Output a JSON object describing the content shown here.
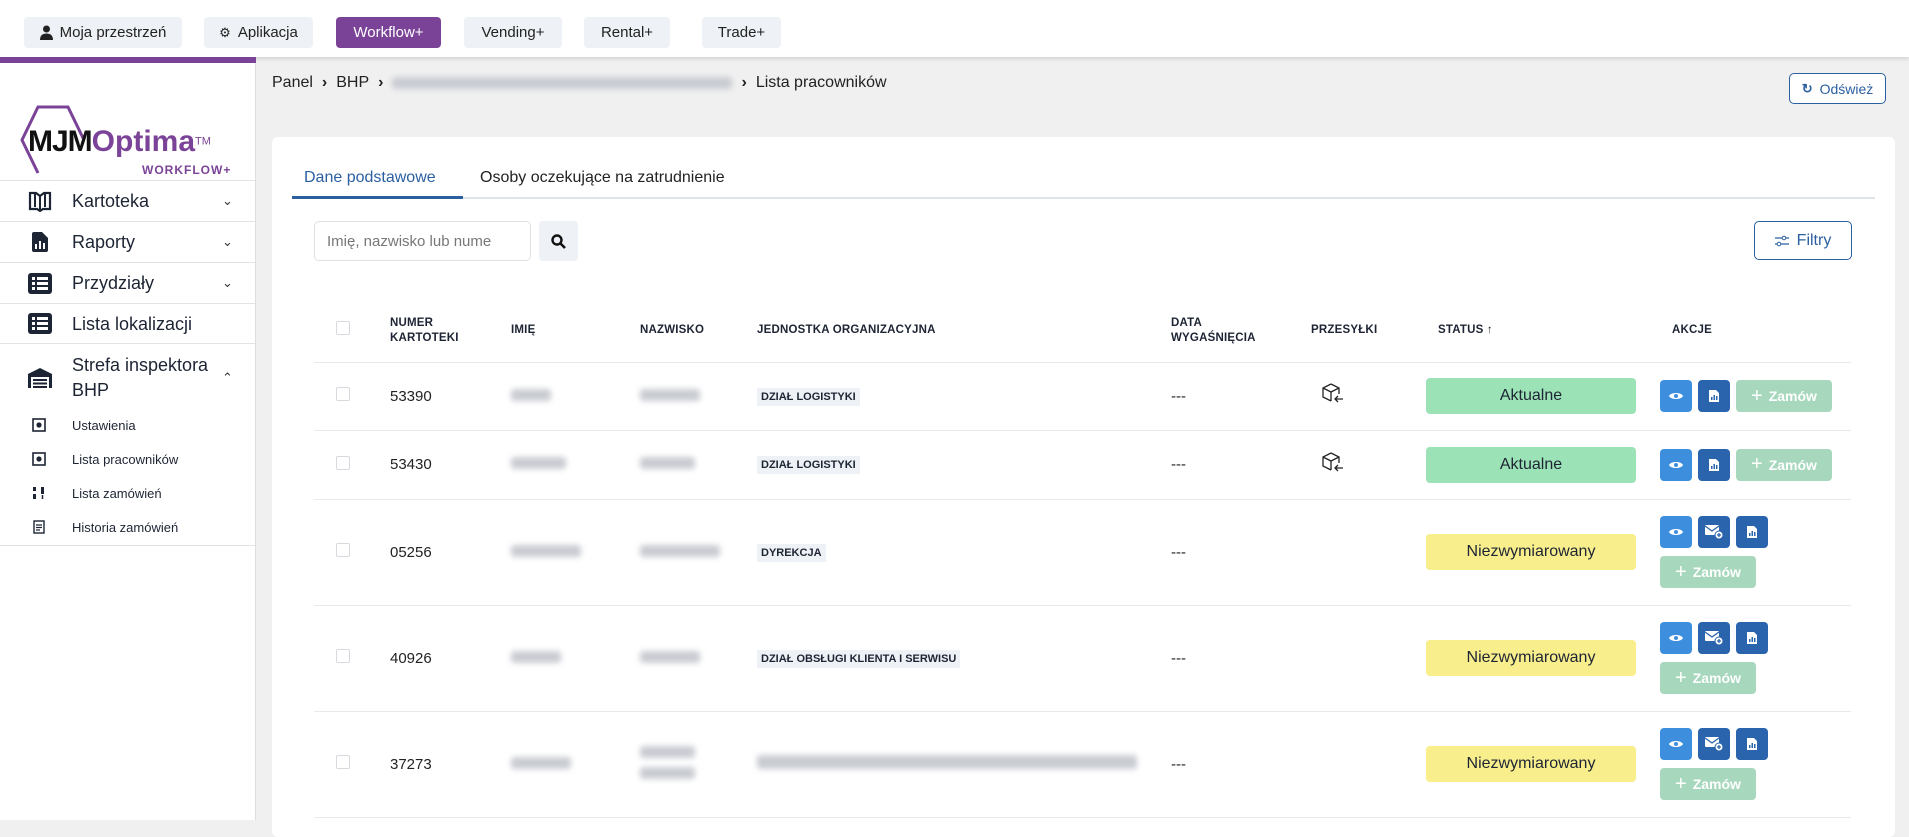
{
  "topbar": {
    "buttons": [
      {
        "label": "Moja przestrzeń",
        "icon": "user-icon"
      },
      {
        "label": "Aplikacja",
        "icon": "gears-icon"
      },
      {
        "label": "Workflow+",
        "active": true
      },
      {
        "label": "Vending+"
      },
      {
        "label": "Rental+"
      },
      {
        "label": "Trade+"
      }
    ]
  },
  "logo": {
    "text": "MJM",
    "text2": "Optima",
    "tm": "TM",
    "sub": "WORKFLOW+"
  },
  "colors": {
    "brand": "#7b4397",
    "primary": "#2b5fa0",
    "aktualne": "#9be3b6",
    "niezwymiarowany": "#f8ee8c",
    "order": "#a7d8be"
  },
  "sidebar": {
    "items": [
      {
        "label": "Kartoteka",
        "icon": "book-icon",
        "chevron": "down"
      },
      {
        "label": "Raporty",
        "icon": "report-icon",
        "chevron": "down"
      },
      {
        "label": "Przydziały",
        "icon": "list-icon",
        "chevron": "down"
      },
      {
        "label": "Lista lokalizacji",
        "icon": "list-icon"
      },
      {
        "label": "Strefa inspektora BHP",
        "icon": "warehouse-icon",
        "chevron": "up"
      }
    ],
    "subitems": [
      {
        "label": "Ustawienia",
        "icon": "gear-box-icon"
      },
      {
        "label": "Lista pracowników",
        "icon": "gear-box-icon"
      },
      {
        "label": "Lista zamówień",
        "icon": "sort-icon"
      },
      {
        "label": "Historia zamówień",
        "icon": "document-icon"
      }
    ]
  },
  "breadcrumb": {
    "items": [
      "Panel",
      "BHP"
    ],
    "current": "Lista pracowników"
  },
  "refresh_label": "Odśwież",
  "tabs": [
    {
      "label": "Dane podstawowe",
      "active": true
    },
    {
      "label": "Osoby oczekujące na zatrudnienie"
    }
  ],
  "search": {
    "placeholder": "Imię, nazwisko lub nume"
  },
  "filters_label": "Filtry",
  "table": {
    "headers": {
      "numer": "NUMER KARTOTEKI",
      "imie": "IMIĘ",
      "nazwisko": "NAZWISKO",
      "jednostka": "JEDNOSTKA ORGANIZACYJNA",
      "data": "DATA WYGAŚNIĘCIA",
      "przesylki": "PRZESYŁKI",
      "status": "STATUS",
      "status_sort": "↑",
      "akcje": "AKCJE"
    },
    "order_label": "Zamów",
    "rows": [
      {
        "numer": "53390",
        "jednostka": "DZIAŁ LOGISTYKI",
        "data": "---",
        "przesylka": true,
        "status": "Aktualne",
        "mail": false
      },
      {
        "numer": "53430",
        "jednostka": "DZIAŁ LOGISTYKI",
        "data": "---",
        "przesylka": true,
        "status": "Aktualne",
        "mail": false
      },
      {
        "numer": "05256",
        "jednostka": "DYREKCJA",
        "data": "---",
        "przesylka": false,
        "status": "Niezwymiarowany",
        "mail": true
      },
      {
        "numer": "40926",
        "jednostka": "DZIAŁ OBSŁUGI KLIENTA I SERWISU",
        "data": "---",
        "przesylka": false,
        "status": "Niezwymiarowany",
        "mail": true
      },
      {
        "numer": "37273",
        "jednostka": "",
        "data": "---",
        "przesylka": false,
        "status": "Niezwymiarowany",
        "mail": true
      }
    ]
  }
}
